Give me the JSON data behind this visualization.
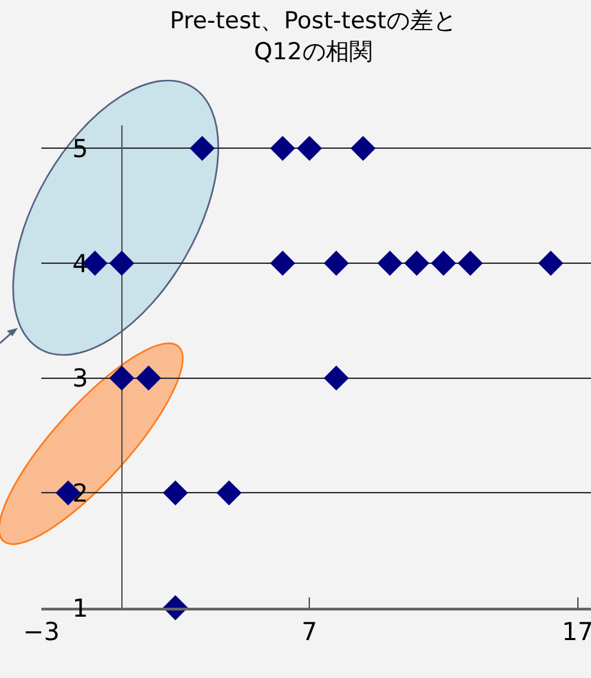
{
  "chart_data": {
    "type": "scatter",
    "title": "Pre-test、Post-testの差と\nQ12の相関",
    "x": [
      3,
      6,
      7,
      9,
      -1,
      0,
      6,
      8,
      10,
      11,
      12,
      13,
      16,
      0,
      1,
      8,
      -2,
      2,
      4,
      2
    ],
    "values": [
      5,
      5,
      5,
      5,
      4,
      4,
      4,
      4,
      4,
      4,
      4,
      4,
      4,
      3,
      3,
      3,
      2,
      2,
      2,
      1
    ],
    "color": "#000080",
    "marker": "diamond",
    "xlim": [
      -3,
      17.5
    ],
    "xticks": [
      {
        "value": -3,
        "label": "−3"
      },
      7,
      17
    ],
    "ylim": [
      1,
      5.2
    ],
    "yticks": [
      1,
      2,
      3,
      4,
      5
    ],
    "grid": "y",
    "legend": false
  }
}
